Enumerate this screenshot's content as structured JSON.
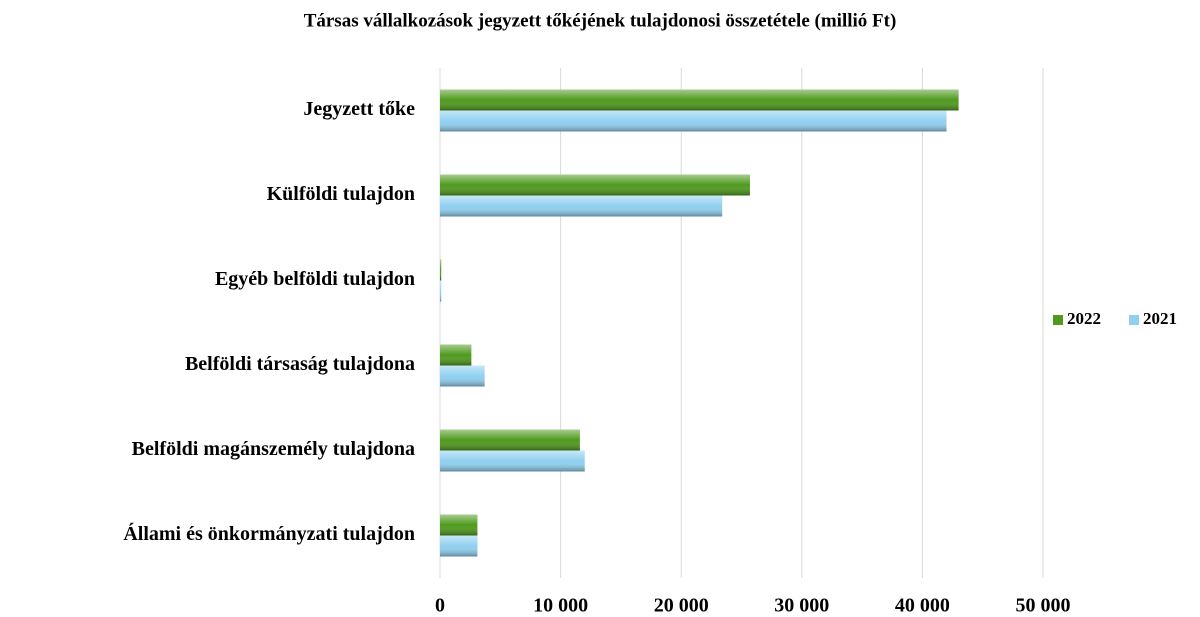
{
  "chart_data": {
    "type": "bar",
    "orientation": "horizontal",
    "title": "Társas vállalkozások jegyzett tőkéjének tulajdonosi  összetétele (millió Ft)",
    "categories": [
      "Jegyzett tőke",
      "Külföldi tulajdon",
      "Egyéb belföldi tulajdon",
      "Belföldi társaság tulajdona",
      "Belföldi magánszemély tulajdona",
      "Állami és önkormányzati tulajdon"
    ],
    "series": [
      {
        "name": "2022",
        "color": "#4f9a1e",
        "values": [
          43000,
          25700,
          100,
          2600,
          11600,
          3100
        ]
      },
      {
        "name": "2021",
        "color": "#8fd0f0",
        "values": [
          42000,
          23400,
          100,
          3700,
          12000,
          3100
        ]
      }
    ],
    "xlim": [
      0,
      50000
    ],
    "xticks": [
      0,
      {
        "value": 10000,
        "label": "10 000"
      },
      {
        "value": 20000,
        "label": "20 000"
      },
      {
        "value": 30000,
        "label": "30 000"
      },
      {
        "value": 40000,
        "label": "40 000"
      },
      {
        "value": 50000,
        "label": "50 000"
      }
    ],
    "grid": true,
    "legend": "right"
  }
}
